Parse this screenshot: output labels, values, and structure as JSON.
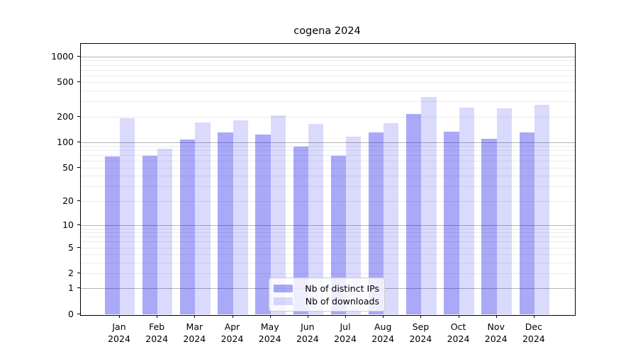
{
  "title": "cogena 2024",
  "colors": {
    "bar_ips": "rgba(10,10,235,0.35)",
    "bar_downloads": "rgba(10,10,235,0.15)",
    "grid_major": "#b4b4b4",
    "grid_minor": "#ebebeb",
    "axis": "#000000"
  },
  "chart_data": {
    "type": "bar",
    "title": "cogena 2024",
    "xlabel": "",
    "ylabel": "",
    "y_scale": "log1p",
    "ylim": [
      0,
      1400
    ],
    "grid": "horizontal, log minor gridlines",
    "legend_position": "lower center inside plot",
    "categories": [
      "Jan 2024",
      "Feb 2024",
      "Mar 2024",
      "Apr 2024",
      "May 2024",
      "Jun 2024",
      "Jul 2024",
      "Aug 2024",
      "Sep 2024",
      "Oct 2024",
      "Nov 2024",
      "Dec 2024"
    ],
    "y_tick_labels": [
      "0",
      "1",
      "2",
      "5",
      "10",
      "20",
      "50",
      "100",
      "200",
      "500",
      "1000"
    ],
    "y_tick_values": [
      0,
      1,
      2,
      5,
      10,
      20,
      50,
      100,
      200,
      500,
      1000
    ],
    "series": [
      {
        "name": "Nb of distinct IPs",
        "values": [
          68,
          69,
          108,
          131,
          122,
          89,
          69,
          129,
          215,
          133,
          110,
          129
        ]
      },
      {
        "name": "Nb of downloads",
        "values": [
          192,
          84,
          171,
          181,
          206,
          164,
          117,
          168,
          340,
          255,
          250,
          275
        ]
      }
    ]
  }
}
